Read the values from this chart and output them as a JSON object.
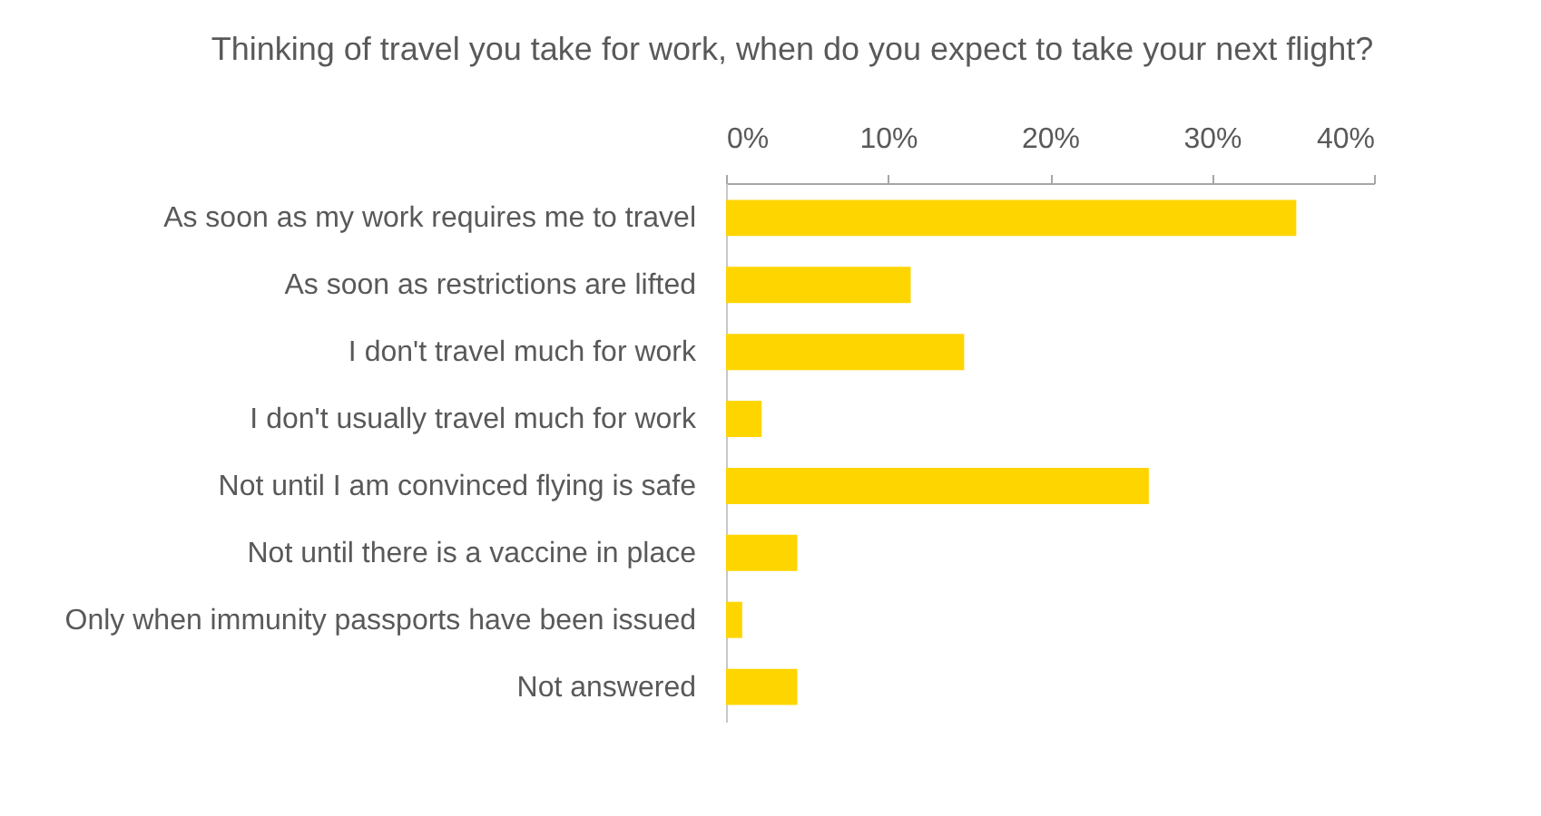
{
  "chart_data": {
    "type": "bar",
    "orientation": "horizontal",
    "title": "Thinking of travel you take for work, when do you expect to take your next flight?",
    "categories": [
      "As soon as my work requires me to travel",
      "As soon as restrictions are lifted",
      "I don't travel much for work",
      "I don't usually travel much for work",
      "Not until I am convinced flying is safe",
      "Not until there is a vaccine in place",
      "Only when immunity passports have been issued",
      "Not answered"
    ],
    "values": [
      35.2,
      11.4,
      14.7,
      2.2,
      26.1,
      4.4,
      1.0,
      4.4
    ],
    "color": "#ffd500",
    "xlim": [
      0,
      40
    ],
    "xticks": [
      {
        "value": 0,
        "label": "0%"
      },
      {
        "value": 10,
        "label": "10%"
      },
      {
        "value": 20,
        "label": "20%"
      },
      {
        "value": 30,
        "label": "30%"
      },
      {
        "value": 40,
        "label": "40%"
      }
    ],
    "grid": false
  }
}
